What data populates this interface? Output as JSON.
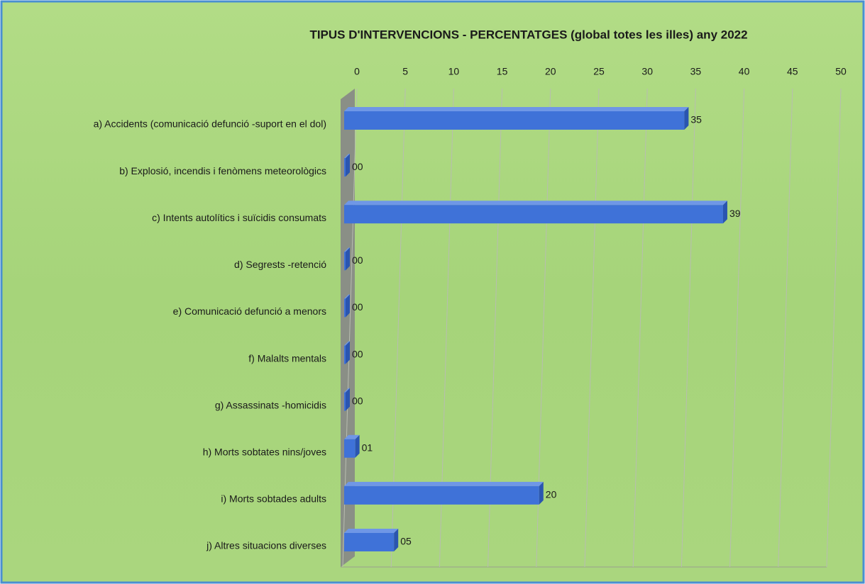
{
  "chart_data": {
    "type": "bar",
    "orientation": "horizontal",
    "title": "TIPUS D'INTERVENCIONS - PERCENTATGES (global totes les illes) any 2022",
    "categories": [
      "a) Accidents (comunicació defunció -suport en el dol)",
      "b) Explosió, incendis i fenòmens meteorològics",
      "c) Intents autolítics i suïcidis consumats",
      "d) Segrests -retenció",
      "e) Comunicació defunció a menors",
      "f) Malalts mentals",
      "g) Assassinats -homicidis",
      "h) Morts sobtates nins/joves",
      "i) Morts sobtades adults",
      "j) Altres situacions diverses"
    ],
    "values": [
      35,
      0,
      39,
      0,
      0,
      0,
      0,
      1,
      20,
      5
    ],
    "value_labels": [
      "35",
      "00",
      "39",
      "00",
      "00",
      "00",
      "00",
      "01",
      "20",
      "05"
    ],
    "color": "#3f72d8",
    "xlim": [
      0,
      50
    ],
    "xticks": [
      0,
      5,
      10,
      15,
      20,
      25,
      30,
      35,
      40,
      45,
      50
    ],
    "grid": true
  }
}
